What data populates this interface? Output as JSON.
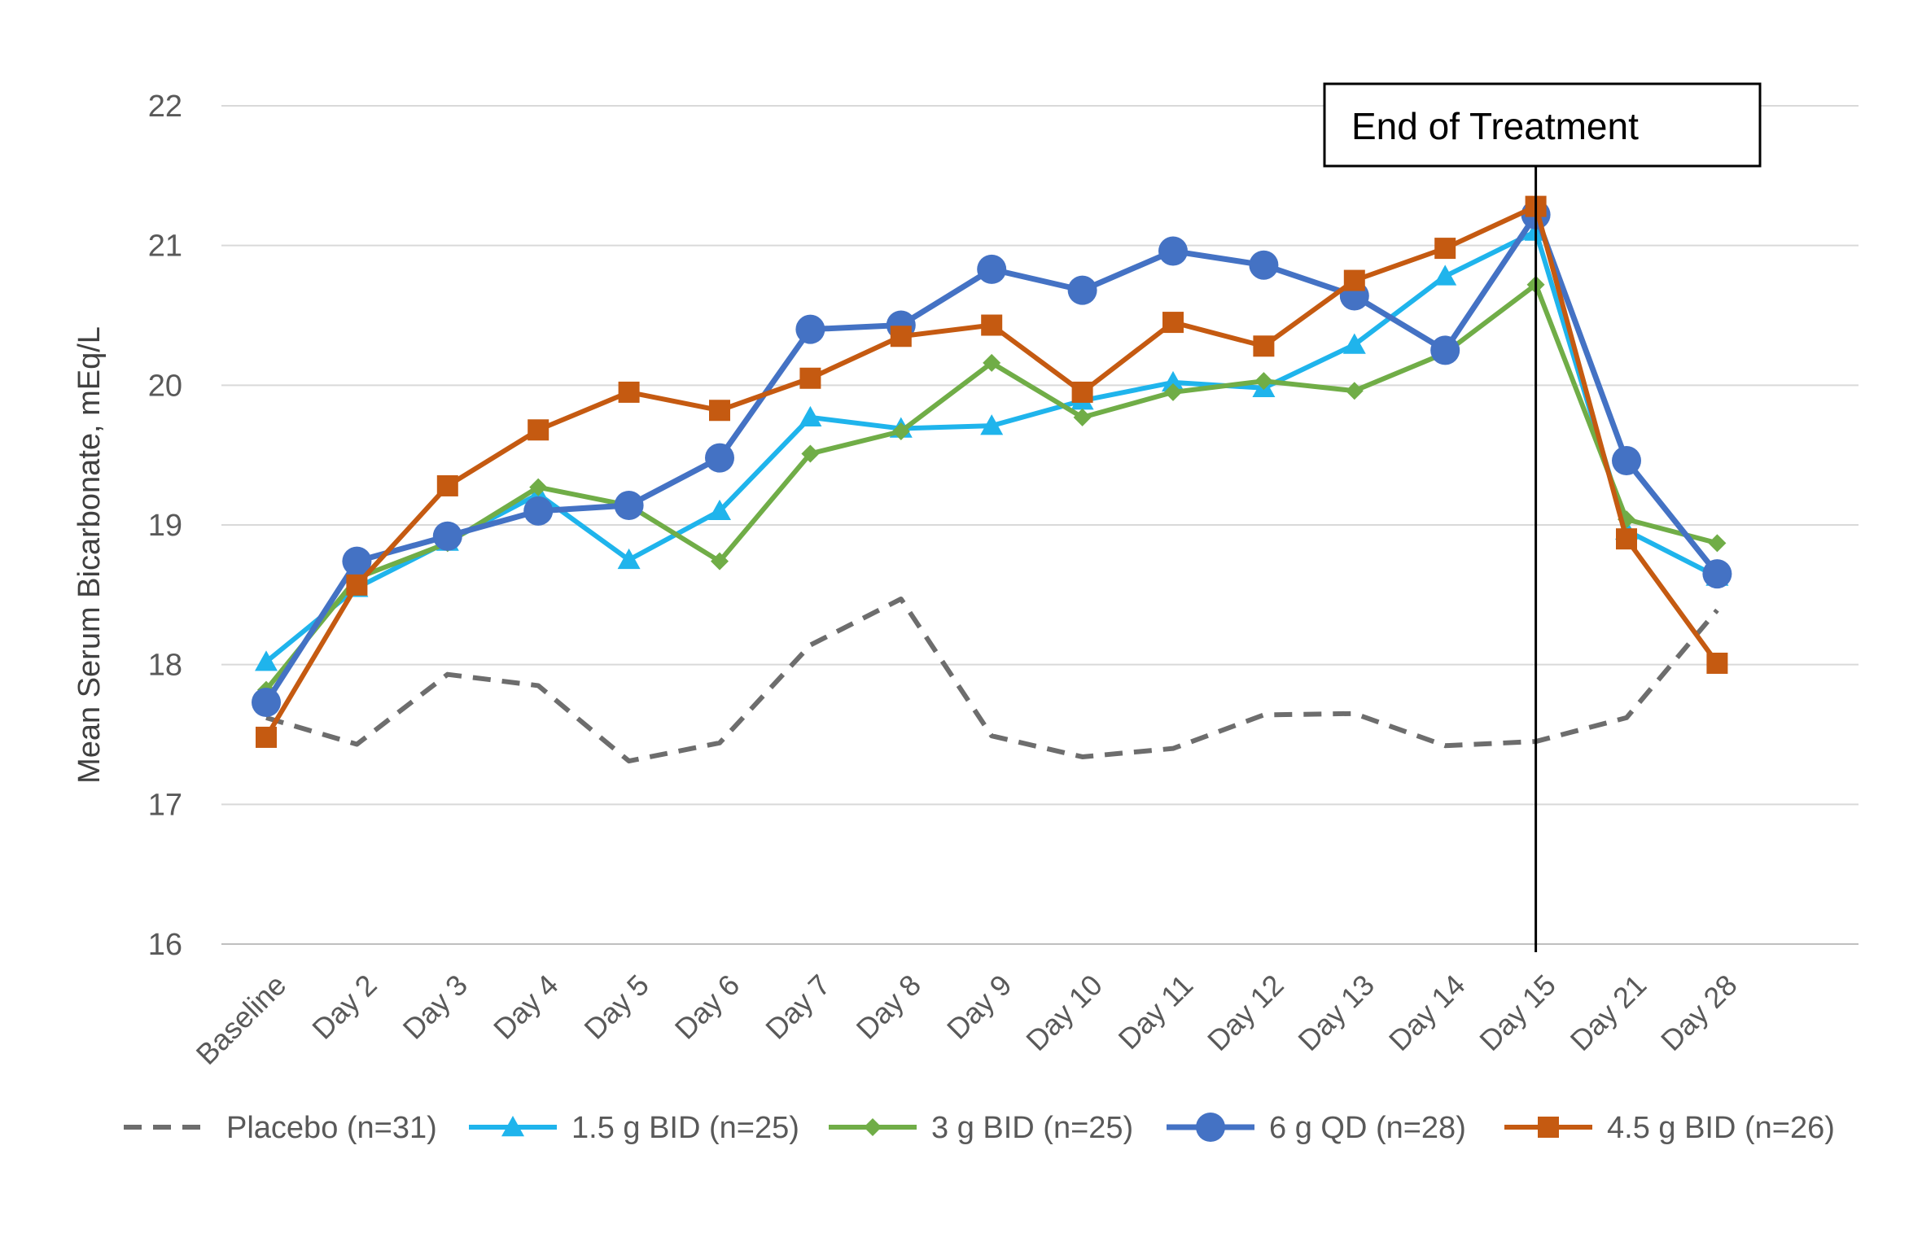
{
  "chart_data": {
    "type": "line",
    "title": "",
    "xlabel": "",
    "ylabel": "Mean Serum Bicarbonate, mEq/L",
    "ylim": [
      16,
      22
    ],
    "yticks": [
      16,
      17,
      18,
      19,
      20,
      21,
      22
    ],
    "grid": true,
    "legend_position": "bottom",
    "categories": [
      "Baseline",
      "Day 2",
      "Day 3",
      "Day 4",
      "Day 5",
      "Day 6",
      "Day 7",
      "Day 8",
      "Day 9",
      "Day 10",
      "Day 11",
      "Day 12",
      "Day 13",
      "Day 14",
      "Day 15",
      "Day 21",
      "Day 28"
    ],
    "annotation": {
      "text": "End of Treatment",
      "at_category": "Day 15"
    },
    "series": [
      {
        "name": "Placebo (n=31)",
        "color": "#6d6d6d",
        "style": "dashed",
        "marker": "none",
        "values": [
          17.62,
          17.43,
          17.93,
          17.85,
          17.31,
          17.44,
          18.14,
          18.47,
          17.49,
          17.34,
          17.4,
          17.64,
          17.65,
          17.42,
          17.45,
          17.62,
          18.39
        ]
      },
      {
        "name": "1.5 g BID (n=25)",
        "color": "#1fb4ec",
        "style": "solid",
        "marker": "triangle",
        "values": [
          18.02,
          18.55,
          18.88,
          19.22,
          18.75,
          19.1,
          19.77,
          19.69,
          19.71,
          19.89,
          20.02,
          19.98,
          20.29,
          20.78,
          21.1,
          18.96,
          18.63
        ]
      },
      {
        "name": "3 g BID (n=25)",
        "color": "#70ad47",
        "style": "solid",
        "marker": "diamond",
        "values": [
          17.82,
          18.62,
          18.87,
          19.27,
          19.14,
          18.74,
          19.51,
          19.67,
          20.16,
          19.77,
          19.95,
          20.03,
          19.96,
          20.23,
          20.72,
          19.04,
          18.87
        ]
      },
      {
        "name": "6 g QD (n=28)",
        "color": "#4472c4",
        "style": "solid",
        "marker": "circle",
        "values": [
          17.73,
          18.74,
          18.92,
          19.1,
          19.14,
          19.48,
          20.4,
          20.43,
          20.83,
          20.68,
          20.96,
          20.86,
          20.64,
          20.25,
          21.22,
          19.46,
          18.65
        ]
      },
      {
        "name": "4.5 g BID (n=26)",
        "color": "#c55a11",
        "style": "solid",
        "marker": "square",
        "values": [
          17.48,
          18.57,
          19.28,
          19.68,
          19.95,
          19.82,
          20.05,
          20.35,
          20.43,
          19.95,
          20.45,
          20.28,
          20.75,
          20.98,
          21.28,
          18.9,
          18.01
        ]
      }
    ]
  }
}
